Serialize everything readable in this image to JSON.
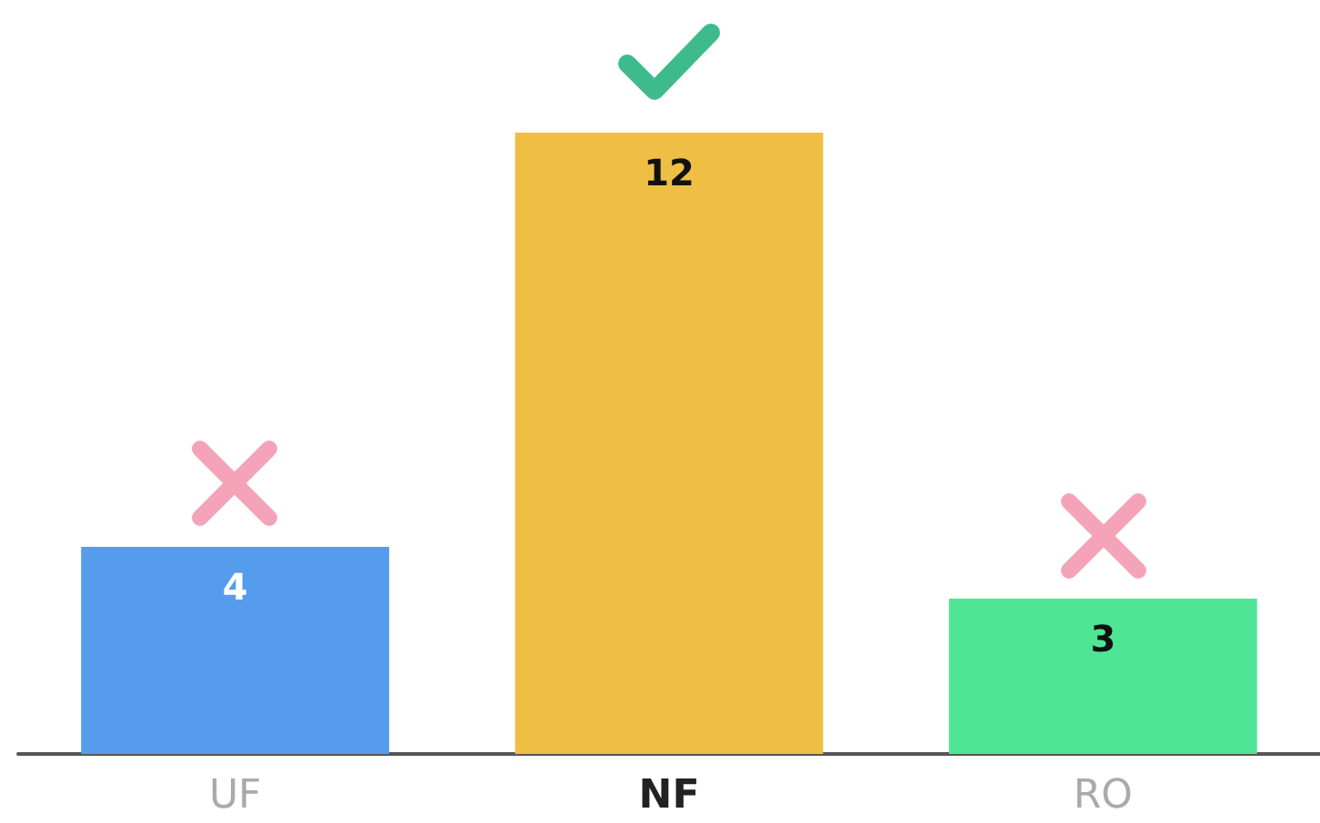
{
  "chart_data": {
    "type": "bar",
    "categories": [
      "UF",
      "NF",
      "RO"
    ],
    "values": [
      4,
      12,
      3
    ],
    "colors": [
      "#559ced",
      "#efbf45",
      "#4ee695"
    ],
    "data_labels": true
  }
}
